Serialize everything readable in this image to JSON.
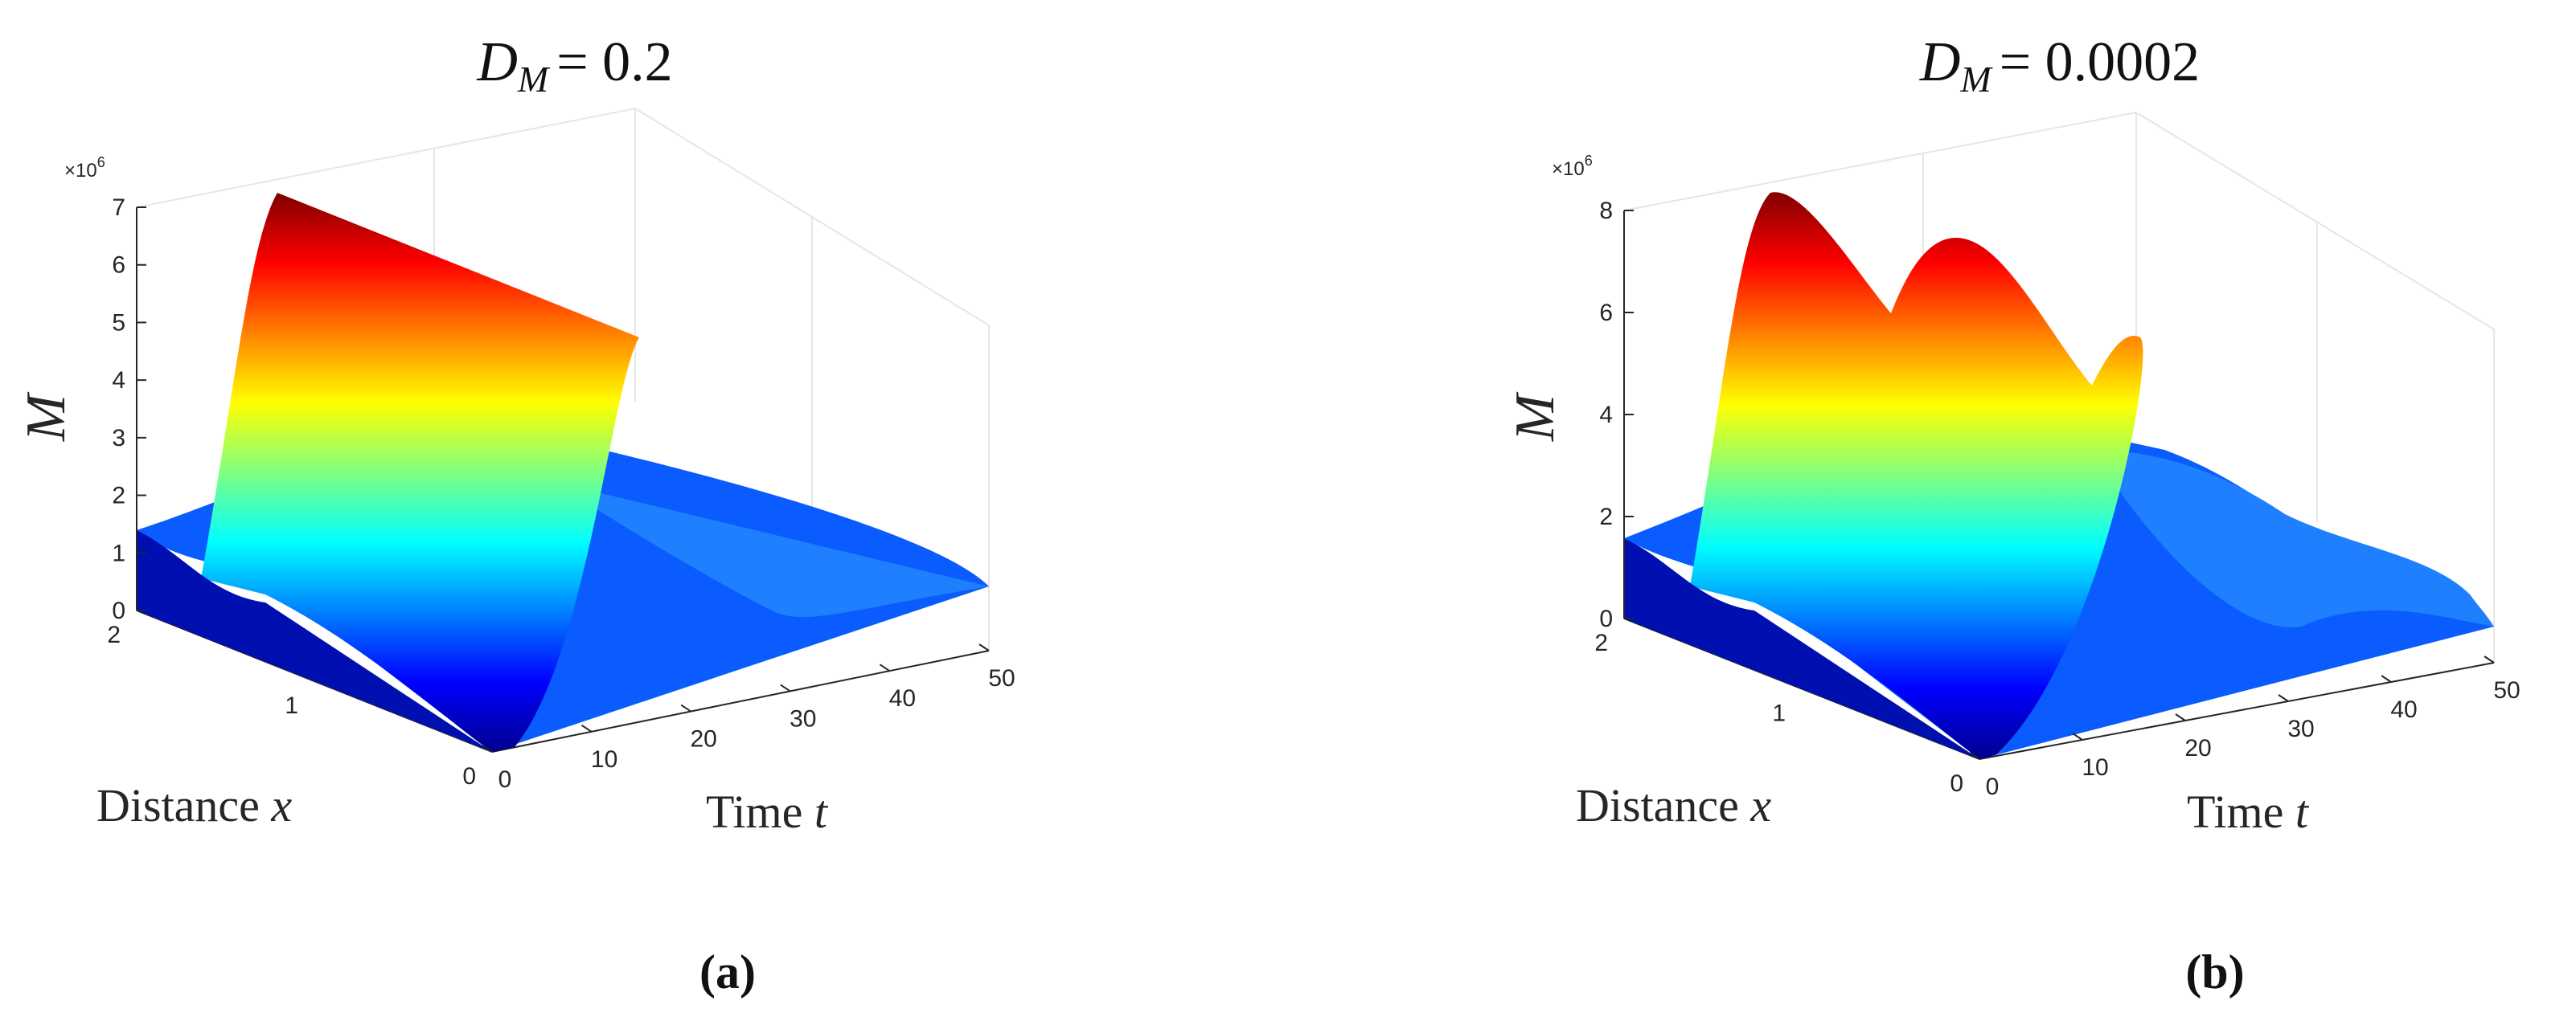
{
  "chart_data": [
    {
      "type": "surface",
      "panel": "a",
      "title_symbol": "D",
      "title_subscript": "M",
      "title_value": "= 0.2",
      "caption": "(a)",
      "zlabel": "M",
      "xlabel_word": "Distance ",
      "xlabel_var": "x",
      "tlabel_word": "Time ",
      "tlabel_var": "t",
      "z_exponent_base": "×10",
      "z_exponent_power": "6",
      "x_ticks": [
        "0",
        "1",
        "2"
      ],
      "t_ticks": [
        "0",
        "10",
        "20",
        "30",
        "40",
        "50"
      ],
      "z_ticks": [
        "0",
        "1",
        "2",
        "3",
        "4",
        "5",
        "6",
        "7"
      ],
      "xlim": [
        0,
        2
      ],
      "tlim": [
        0,
        50
      ],
      "zlim": [
        0,
        7000000
      ],
      "z_tick_step": 1000000,
      "peak_value": 7000000,
      "tail_value": 1500000,
      "colormap": "jet"
    },
    {
      "type": "surface",
      "panel": "b",
      "title_symbol": "D",
      "title_subscript": "M",
      "title_value": "= 0.0002",
      "caption": "(b)",
      "zlabel": "M",
      "xlabel_word": "Distance ",
      "xlabel_var": "x",
      "tlabel_word": "Time ",
      "tlabel_var": "t",
      "z_exponent_base": "×10",
      "z_exponent_power": "6",
      "x_ticks": [
        "0",
        "1",
        "2"
      ],
      "t_ticks": [
        "0",
        "10",
        "20",
        "30",
        "40",
        "50"
      ],
      "z_ticks": [
        "0",
        "2",
        "4",
        "6",
        "8"
      ],
      "xlim": [
        0,
        2
      ],
      "tlim": [
        0,
        50
      ],
      "zlim": [
        0,
        8000000
      ],
      "z_tick_step": 2000000,
      "peak_value": 8000000,
      "tail_value": 2000000,
      "colormap": "jet"
    }
  ]
}
